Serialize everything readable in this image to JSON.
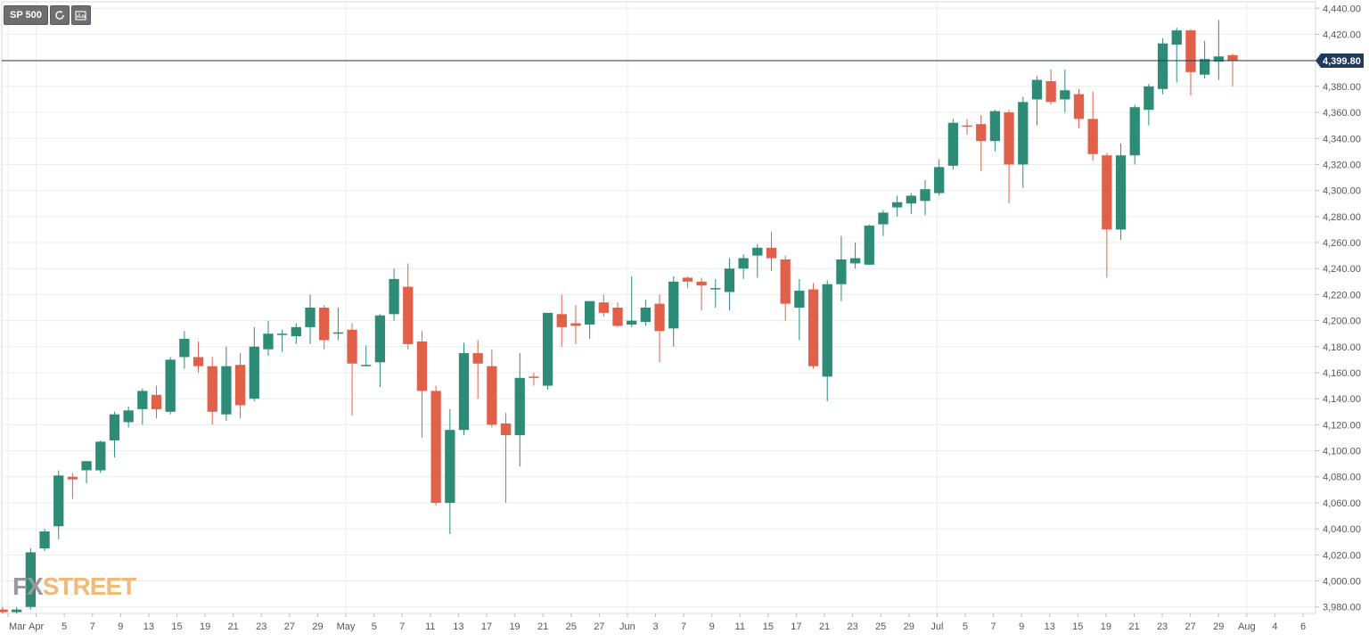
{
  "toolbar": {
    "symbol_label": "SP 500",
    "refresh_icon": "refresh-icon",
    "indicators_icon": "indicators-icon"
  },
  "watermark": {
    "prefix": "FX",
    "suffix": "STREET"
  },
  "colors": {
    "up": "#2e8b76",
    "down": "#e0604a",
    "grid": "#ececec",
    "price_line": "#1f3a5a",
    "axis_text": "#555555"
  },
  "chart_data": {
    "type": "candlestick",
    "title": "",
    "ylim": [
      3975,
      4445
    ],
    "y_ticks": [
      "3,980.00",
      "4,000.00",
      "4,020.00",
      "4,040.00",
      "4,060.00",
      "4,080.00",
      "4,100.00",
      "4,120.00",
      "4,140.00",
      "4,160.00",
      "4,180.00",
      "4,200.00",
      "4,220.00",
      "4,240.00",
      "4,260.00",
      "4,280.00",
      "4,300.00",
      "4,320.00",
      "4,340.00",
      "4,360.00",
      "4,380.00",
      "4,400.00",
      "4,420.00",
      "4,440.00"
    ],
    "x_labels": [
      "Mar",
      "Apr",
      "5",
      "7",
      "9",
      "13",
      "15",
      "19",
      "21",
      "23",
      "27",
      "29",
      "May",
      "5",
      "7",
      "11",
      "13",
      "17",
      "19",
      "21",
      "25",
      "27",
      "Jun",
      "3",
      "7",
      "9",
      "11",
      "15",
      "17",
      "21",
      "23",
      "25",
      "29",
      "Jul",
      "5",
      "7",
      "9",
      "13",
      "15",
      "19",
      "21",
      "23",
      "27",
      "29",
      "Aug",
      "4",
      "6"
    ],
    "last_price": 4399.8,
    "last_price_label": "4,399.80",
    "grid": true,
    "candles": [
      [
        "Mar 31",
        3978,
        3980,
        3975,
        3976
      ],
      [
        "Apr 1",
        3976,
        3980,
        3975,
        3978
      ],
      [
        "Apr 5",
        3980,
        4025,
        3978,
        4022
      ],
      [
        "Apr 6",
        4025,
        4040,
        4023,
        4038
      ],
      [
        "Apr 7",
        4042,
        4085,
        4032,
        4081
      ],
      [
        "Apr 8",
        4080,
        4083,
        4063,
        4078
      ],
      [
        "Apr 9",
        4085,
        4092,
        4075,
        4092
      ],
      [
        "Apr 12",
        4085,
        4108,
        4083,
        4107
      ],
      [
        "Apr 13",
        4108,
        4130,
        4095,
        4128
      ],
      [
        "Apr 14",
        4122,
        4134,
        4118,
        4131
      ],
      [
        "Apr 15",
        4132,
        4148,
        4120,
        4146
      ],
      [
        "Apr 16",
        4143,
        4150,
        4125,
        4132
      ],
      [
        "Apr 19",
        4130,
        4172,
        4128,
        4170
      ],
      [
        "Apr 20",
        4172,
        4192,
        4163,
        4186
      ],
      [
        "Apr 21",
        4172,
        4184,
        4160,
        4165
      ],
      [
        "Apr 22",
        4165,
        4172,
        4120,
        4130
      ],
      [
        "Apr 23",
        4128,
        4180,
        4123,
        4165
      ],
      [
        "Apr 26",
        4166,
        4175,
        4125,
        4135
      ],
      [
        "Apr 27",
        4140,
        4195,
        4138,
        4180
      ],
      [
        "Apr 28",
        4178,
        4200,
        4173,
        4190
      ],
      [
        "Apr 29",
        4190,
        4193,
        4176,
        4190
      ],
      [
        "Apr 30",
        4188,
        4198,
        4182,
        4195
      ],
      [
        "May 3",
        4195,
        4220,
        4182,
        4210
      ],
      [
        "May 4",
        4210,
        4212,
        4178,
        4185
      ],
      [
        "May 5",
        4191,
        4210,
        4185,
        4191
      ],
      [
        "May 6",
        4193,
        4198,
        4127,
        4167
      ],
      [
        "May 7",
        4166,
        4181,
        4165,
        4166
      ],
      [
        "May 10",
        4168,
        4205,
        4149,
        4204
      ],
      [
        "May 11",
        4205,
        4240,
        4200,
        4232
      ],
      [
        "May 12",
        4226,
        4244,
        4178,
        4182
      ],
      [
        "May 13",
        4184,
        4192,
        4110,
        4146
      ],
      [
        "May 14",
        4146,
        4150,
        4058,
        4060
      ],
      [
        "May 17",
        4060,
        4132,
        4036,
        4116
      ],
      [
        "May 18",
        4116,
        4183,
        4112,
        4175
      ],
      [
        "May 19",
        4175,
        4185,
        4140,
        4167
      ],
      [
        "May 20",
        4165,
        4178,
        4118,
        4120
      ],
      [
        "May 21",
        4121,
        4129,
        4060,
        4112
      ],
      [
        "May 24",
        4112,
        4175,
        4088,
        4156
      ],
      [
        "May 25",
        4157,
        4160,
        4150,
        4156
      ],
      [
        "May 26",
        4150,
        4205,
        4147,
        4206
      ],
      [
        "May 27",
        4205,
        4220,
        4180,
        4195
      ],
      [
        "May 28",
        4198,
        4212,
        4182,
        4196
      ],
      [
        "May 31",
        4197,
        4215,
        4186,
        4215
      ],
      [
        "Jun 1",
        4214,
        4220,
        4203,
        4206
      ],
      [
        "Jun 2",
        4210,
        4214,
        4195,
        4196
      ],
      [
        "Jun 3",
        4197,
        4234,
        4195,
        4200
      ],
      [
        "Jun 4",
        4199,
        4216,
        4196,
        4210
      ],
      [
        "Jun 7",
        4213,
        4220,
        4168,
        4192
      ],
      [
        "Jun 8",
        4194,
        4234,
        4180,
        4230
      ],
      [
        "Jun 9",
        4233,
        4234,
        4225,
        4230
      ],
      [
        "Jun 10",
        4230,
        4233,
        4208,
        4227
      ],
      [
        "Jun 11",
        4225,
        4232,
        4210,
        4225
      ],
      [
        "Jun 14",
        4222,
        4248,
        4208,
        4240
      ],
      [
        "Jun 15",
        4240,
        4251,
        4232,
        4248
      ],
      [
        "Jun 16",
        4250,
        4259,
        4233,
        4256
      ],
      [
        "Jun 17",
        4256,
        4268,
        4238,
        4248
      ],
      [
        "Jun 18",
        4247,
        4250,
        4200,
        4213
      ],
      [
        "Jun 21",
        4210,
        4232,
        4185,
        4223
      ],
      [
        "Jun 22",
        4224,
        4229,
        4163,
        4165
      ],
      [
        "Jun 23",
        4157,
        4231,
        4138,
        4228
      ],
      [
        "Jun 24",
        4228,
        4265,
        4215,
        4247
      ],
      [
        "Jun 25",
        4244,
        4260,
        4240,
        4248
      ],
      [
        "Jun 28",
        4243,
        4274,
        4243,
        4273
      ],
      [
        "Jun 29",
        4274,
        4285,
        4265,
        4283
      ],
      [
        "Jun 30",
        4287,
        4296,
        4280,
        4291
      ],
      [
        "Jul 1",
        4290,
        4298,
        4282,
        4296
      ],
      [
        "Jul 2",
        4292,
        4308,
        4281,
        4301
      ],
      [
        "Jul 6",
        4298,
        4324,
        4296,
        4318
      ],
      [
        "Jul 7",
        4319,
        4355,
        4316,
        4352
      ],
      [
        "Jul 8",
        4350,
        4355,
        4343,
        4349
      ],
      [
        "Jul 9",
        4351,
        4358,
        4315,
        4338
      ],
      [
        "Jul 12",
        4338,
        4362,
        4330,
        4361
      ],
      [
        "Jul 13",
        4360,
        4362,
        4290,
        4320
      ],
      [
        "Jul 14",
        4320,
        4372,
        4302,
        4368
      ],
      [
        "Jul 15",
        4370,
        4388,
        4350,
        4385
      ],
      [
        "Jul 16",
        4384,
        4393,
        4366,
        4368
      ],
      [
        "Jul 19",
        4370,
        4393,
        4360,
        4377
      ],
      [
        "Jul 20",
        4374,
        4378,
        4348,
        4355
      ],
      [
        "Jul 21",
        4355,
        4376,
        4323,
        4328
      ],
      [
        "Jul 22",
        4327,
        4329,
        4233,
        4270
      ],
      [
        "Jul 23",
        4270,
        4336,
        4262,
        4327
      ],
      [
        "Jul 26",
        4327,
        4366,
        4320,
        4364
      ],
      [
        "Jul 27",
        4362,
        4382,
        4350,
        4380
      ],
      [
        "Jul 28",
        4378,
        4417,
        4374,
        4413
      ],
      [
        "Jul 29",
        4412,
        4425,
        4383,
        4423
      ],
      [
        "Jul 30",
        4423,
        4424,
        4373,
        4391
      ],
      [
        "Jul 31",
        4389,
        4415,
        4386,
        4401
      ],
      [
        "Aug 2",
        4399,
        4431,
        4385,
        4403
      ],
      [
        "Aug 3",
        4404,
        4405,
        4380,
        4400
      ]
    ]
  }
}
